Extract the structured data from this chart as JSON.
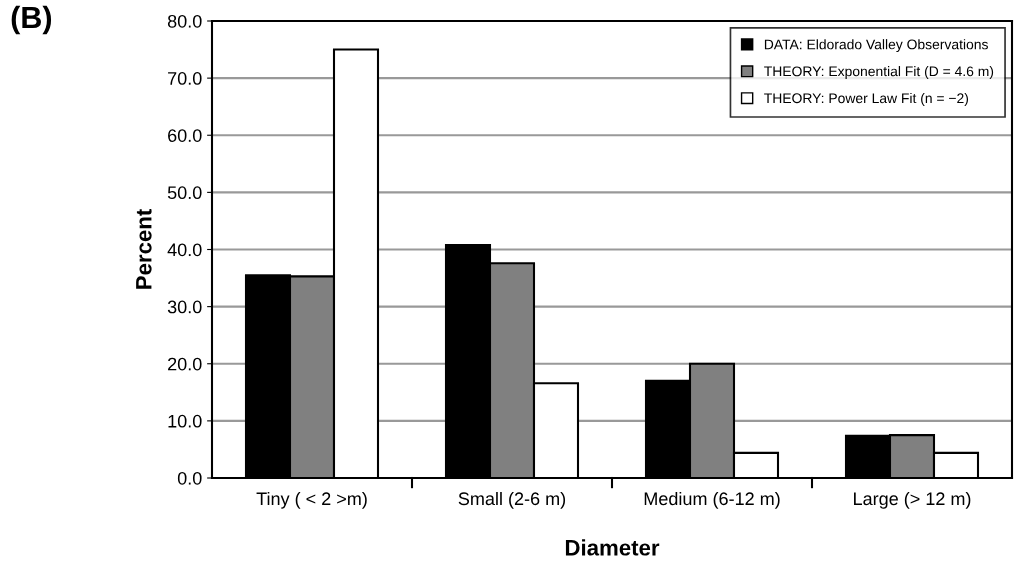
{
  "chart_data": {
    "type": "bar",
    "title": "(B)",
    "xlabel": "Diameter",
    "ylabel": "Percent",
    "categories": [
      "Tiny ( < 2 >m)",
      "Small (2-6 m)",
      "Medium (6-12 m)",
      "Large (> 12 m)"
    ],
    "series": [
      {
        "name": "DATA: Eldorado Valley Observations",
        "color": "#000000",
        "values": [
          35.5,
          40.8,
          17.0,
          7.4
        ]
      },
      {
        "name": "THEORY: Exponential Fit (D = 4.6 m)",
        "color": "#808080",
        "values": [
          35.3,
          37.6,
          20.0,
          7.5
        ]
      },
      {
        "name": "THEORY: Power Law Fit (n = −2)",
        "color": "#ffffff",
        "values": [
          75.0,
          16.6,
          4.4,
          4.4
        ]
      }
    ],
    "ylim": [
      0,
      80
    ],
    "yticks": [
      {
        "value": 0,
        "label": "0.0"
      },
      {
        "value": 10,
        "label": "10.0"
      },
      {
        "value": 20,
        "label": "20.0"
      },
      {
        "value": 30,
        "label": "30.0"
      },
      {
        "value": 40,
        "label": "40.0"
      },
      {
        "value": 50,
        "label": "50.0"
      },
      {
        "value": 60,
        "label": "60.0"
      },
      {
        "value": 70,
        "label": "70.0"
      },
      {
        "value": 80,
        "label": "80.0"
      }
    ],
    "grid": "y",
    "legend": "top right"
  }
}
